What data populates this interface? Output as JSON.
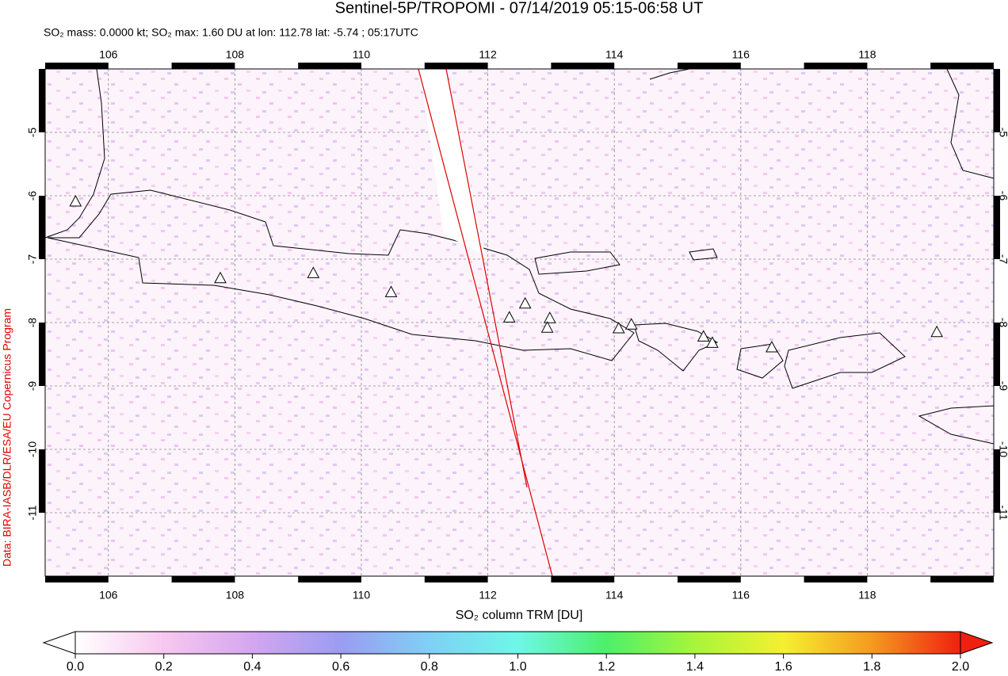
{
  "chart_data": {
    "type": "map",
    "title": "Sentinel-5P/TROPOMI - 07/14/2019 05:15-06:58 UT",
    "subtitle": "SO₂ mass: 0.0000 kt; SO₂ max: 1.60 DU at lon: 112.78 lat: -5.74 ; 05:17UTC",
    "credit": "Data: BIRA-IASB/DLR/ESA/EU Copernicus Program",
    "colorbar_label": "SO₂ column TRM [DU]",
    "xlim": [
      105,
      120
    ],
    "ylim": [
      -12,
      -4
    ],
    "xticks": [
      106,
      108,
      110,
      112,
      114,
      116,
      118
    ],
    "yticks": [
      -5,
      -6,
      -7,
      -8,
      -9,
      -10,
      -11
    ],
    "grid": true,
    "volcanoes": {
      "lon": [
        105.48,
        107.77,
        109.24,
        110.47,
        112.34,
        112.59,
        112.98,
        112.94,
        114.07,
        114.27,
        115.41,
        115.55,
        116.49,
        119.1
      ],
      "lat": [
        -6.1,
        -7.31,
        -7.23,
        -7.53,
        -7.93,
        -7.71,
        -7.94,
        -8.09,
        -8.1,
        -8.04,
        -8.23,
        -8.33,
        -8.4,
        -8.16
      ]
    },
    "clim": [
      0,
      2
    ],
    "cticks": [
      {
        "value": 0,
        "label": "0.0"
      },
      {
        "value": 0.2,
        "label": "0.2"
      },
      {
        "value": 0.4,
        "label": "0.4"
      },
      {
        "value": 0.6,
        "label": "0.6"
      },
      {
        "value": 0.8,
        "label": "0.8"
      },
      {
        "value": 1,
        "label": "1.0"
      },
      {
        "value": 1.2,
        "label": "1.2"
      },
      {
        "value": 1.4,
        "label": "1.4"
      },
      {
        "value": 1.6,
        "label": "1.6"
      },
      {
        "value": 1.8,
        "label": "1.8"
      },
      {
        "value": 2,
        "label": "2.0"
      }
    ],
    "colormap": [
      "#ffffff",
      "#f7c8ef",
      "#d4a6f0",
      "#9b9cf2",
      "#7fd0f5",
      "#6ef7e8",
      "#4cf06a",
      "#a8f53a",
      "#f5f030",
      "#f59a20",
      "#f02010"
    ]
  }
}
